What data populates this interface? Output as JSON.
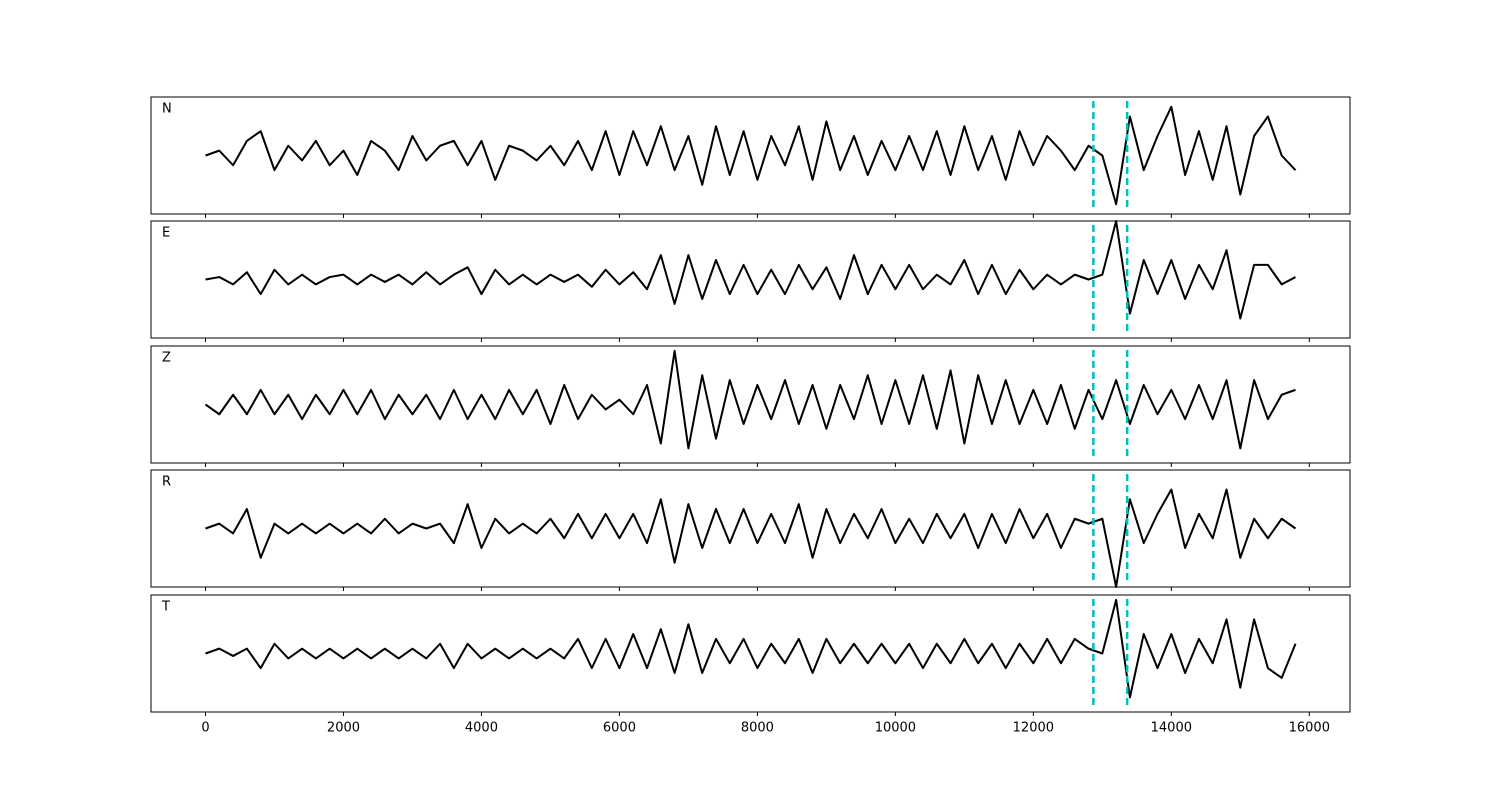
{
  "chart_data": {
    "type": "line",
    "color": "#000000",
    "xlim": [
      -790,
      16590
    ],
    "ylim": [
      -1.2,
      1.2
    ],
    "xticks": [
      0,
      2000,
      4000,
      6000,
      8000,
      10000,
      12000,
      14000,
      16000
    ],
    "vlines": [
      12870,
      13360
    ],
    "vline_color": "#00bfbf",
    "x": [
      0,
      200,
      400,
      600,
      800,
      1000,
      1200,
      1400,
      1600,
      1800,
      2000,
      2200,
      2400,
      2600,
      2800,
      3000,
      3200,
      3400,
      3600,
      3800,
      4000,
      4200,
      4400,
      4600,
      4800,
      5000,
      5200,
      5400,
      5600,
      5800,
      6000,
      6200,
      6400,
      6600,
      6800,
      7000,
      7200,
      7400,
      7600,
      7800,
      8000,
      8200,
      8400,
      8600,
      8800,
      9000,
      9200,
      9400,
      9600,
      9800,
      10000,
      10200,
      10400,
      10600,
      10800,
      11000,
      11200,
      11400,
      11600,
      11800,
      12000,
      12200,
      12400,
      12600,
      12800,
      13000,
      13200,
      13400,
      13600,
      13800,
      14000,
      14200,
      14400,
      14600,
      14800,
      15000,
      15200,
      15400,
      15600,
      15800
    ],
    "series": [
      {
        "name": "N",
        "values": [
          0,
          0.1,
          -0.2,
          0.3,
          0.5,
          -0.3,
          0.2,
          -0.1,
          0.3,
          -0.2,
          0.1,
          -0.4,
          0.3,
          0.1,
          -0.3,
          0.4,
          -0.1,
          0.2,
          0.3,
          -0.2,
          0.3,
          -0.5,
          0.2,
          0.1,
          -0.1,
          0.2,
          -0.2,
          0.3,
          -0.3,
          0.5,
          -0.4,
          0.5,
          -0.2,
          0.6,
          -0.3,
          0.4,
          -0.6,
          0.6,
          -0.4,
          0.5,
          -0.5,
          0.4,
          -0.2,
          0.6,
          -0.5,
          0.7,
          -0.3,
          0.4,
          -0.4,
          0.3,
          -0.3,
          0.4,
          -0.3,
          0.5,
          -0.4,
          0.6,
          -0.3,
          0.4,
          -0.5,
          0.5,
          -0.2,
          0.4,
          0.1,
          -0.3,
          0.2,
          0,
          -1.0,
          0.8,
          -0.3,
          0.4,
          1.0,
          -0.4,
          0.5,
          -0.5,
          0.6,
          -0.8,
          0.4,
          0.8,
          0,
          -0.3
        ]
      },
      {
        "name": "E",
        "values": [
          0,
          0.05,
          -0.1,
          0.15,
          -0.3,
          0.2,
          -0.1,
          0.1,
          -0.1,
          0.05,
          0.1,
          -0.1,
          0.1,
          -0.05,
          0.1,
          -0.1,
          0.15,
          -0.1,
          0.1,
          0.25,
          -0.3,
          0.2,
          -0.1,
          0.1,
          -0.1,
          0.1,
          -0.05,
          0.1,
          -0.15,
          0.2,
          -0.1,
          0.15,
          -0.2,
          0.5,
          -0.5,
          0.5,
          -0.4,
          0.4,
          -0.3,
          0.3,
          -0.3,
          0.2,
          -0.3,
          0.3,
          -0.2,
          0.25,
          -0.4,
          0.5,
          -0.3,
          0.3,
          -0.2,
          0.3,
          -0.2,
          0.1,
          -0.1,
          0.4,
          -0.3,
          0.3,
          -0.3,
          0.2,
          -0.2,
          0.1,
          -0.1,
          0.1,
          0,
          0.1,
          1.2,
          -0.7,
          0.4,
          -0.3,
          0.4,
          -0.4,
          0.3,
          -0.2,
          0.6,
          -0.8,
          0.3,
          0.3,
          -0.1,
          0.05
        ]
      },
      {
        "name": "Z",
        "values": [
          0,
          -0.2,
          0.2,
          -0.2,
          0.3,
          -0.2,
          0.2,
          -0.3,
          0.2,
          -0.2,
          0.3,
          -0.2,
          0.3,
          -0.3,
          0.2,
          -0.2,
          0.2,
          -0.3,
          0.3,
          -0.3,
          0.2,
          -0.3,
          0.3,
          -0.2,
          0.3,
          -0.4,
          0.4,
          -0.3,
          0.2,
          -0.1,
          0.1,
          -0.2,
          0.4,
          -0.8,
          1.1,
          -0.9,
          0.6,
          -0.7,
          0.5,
          -0.4,
          0.4,
          -0.3,
          0.5,
          -0.4,
          0.4,
          -0.5,
          0.4,
          -0.3,
          0.6,
          -0.4,
          0.5,
          -0.4,
          0.6,
          -0.5,
          0.7,
          -0.8,
          0.6,
          -0.4,
          0.5,
          -0.4,
          0.3,
          -0.4,
          0.4,
          -0.5,
          0.3,
          -0.3,
          0.5,
          -0.4,
          0.4,
          -0.2,
          0.3,
          -0.3,
          0.4,
          -0.3,
          0.5,
          -0.9,
          0.5,
          -0.3,
          0.2,
          0.3
        ]
      },
      {
        "name": "R",
        "values": [
          0,
          0.1,
          -0.1,
          0.4,
          -0.6,
          0.1,
          -0.1,
          0.1,
          -0.1,
          0.1,
          -0.1,
          0.1,
          -0.1,
          0.2,
          -0.1,
          0.1,
          0,
          0.1,
          -0.3,
          0.5,
          -0.4,
          0.2,
          -0.1,
          0.1,
          -0.1,
          0.2,
          -0.2,
          0.3,
          -0.2,
          0.3,
          -0.2,
          0.3,
          -0.3,
          0.6,
          -0.7,
          0.5,
          -0.4,
          0.4,
          -0.3,
          0.4,
          -0.3,
          0.3,
          -0.3,
          0.5,
          -0.6,
          0.4,
          -0.3,
          0.3,
          -0.2,
          0.4,
          -0.3,
          0.2,
          -0.3,
          0.3,
          -0.2,
          0.3,
          -0.4,
          0.3,
          -0.3,
          0.4,
          -0.2,
          0.3,
          -0.4,
          0.2,
          0.1,
          0.2,
          -1.2,
          0.6,
          -0.3,
          0.3,
          0.8,
          -0.4,
          0.3,
          -0.2,
          0.8,
          -0.6,
          0.2,
          -0.2,
          0.2,
          0
        ]
      },
      {
        "name": "T",
        "values": [
          0,
          0.1,
          -0.05,
          0.1,
          -0.3,
          0.2,
          -0.1,
          0.1,
          -0.1,
          0.1,
          -0.1,
          0.1,
          -0.1,
          0.1,
          -0.1,
          0.1,
          -0.1,
          0.2,
          -0.3,
          0.2,
          -0.1,
          0.1,
          -0.1,
          0.1,
          -0.1,
          0.1,
          -0.1,
          0.3,
          -0.3,
          0.3,
          -0.3,
          0.4,
          -0.3,
          0.5,
          -0.4,
          0.6,
          -0.4,
          0.3,
          -0.2,
          0.3,
          -0.3,
          0.2,
          -0.2,
          0.3,
          -0.4,
          0.3,
          -0.2,
          0.2,
          -0.2,
          0.2,
          -0.2,
          0.2,
          -0.3,
          0.2,
          -0.2,
          0.3,
          -0.2,
          0.2,
          -0.3,
          0.2,
          -0.2,
          0.3,
          -0.2,
          0.3,
          0.1,
          0,
          1.1,
          -0.9,
          0.4,
          -0.3,
          0.4,
          -0.4,
          0.3,
          -0.2,
          0.7,
          -0.7,
          0.7,
          -0.3,
          -0.5,
          0.2
        ]
      }
    ]
  }
}
